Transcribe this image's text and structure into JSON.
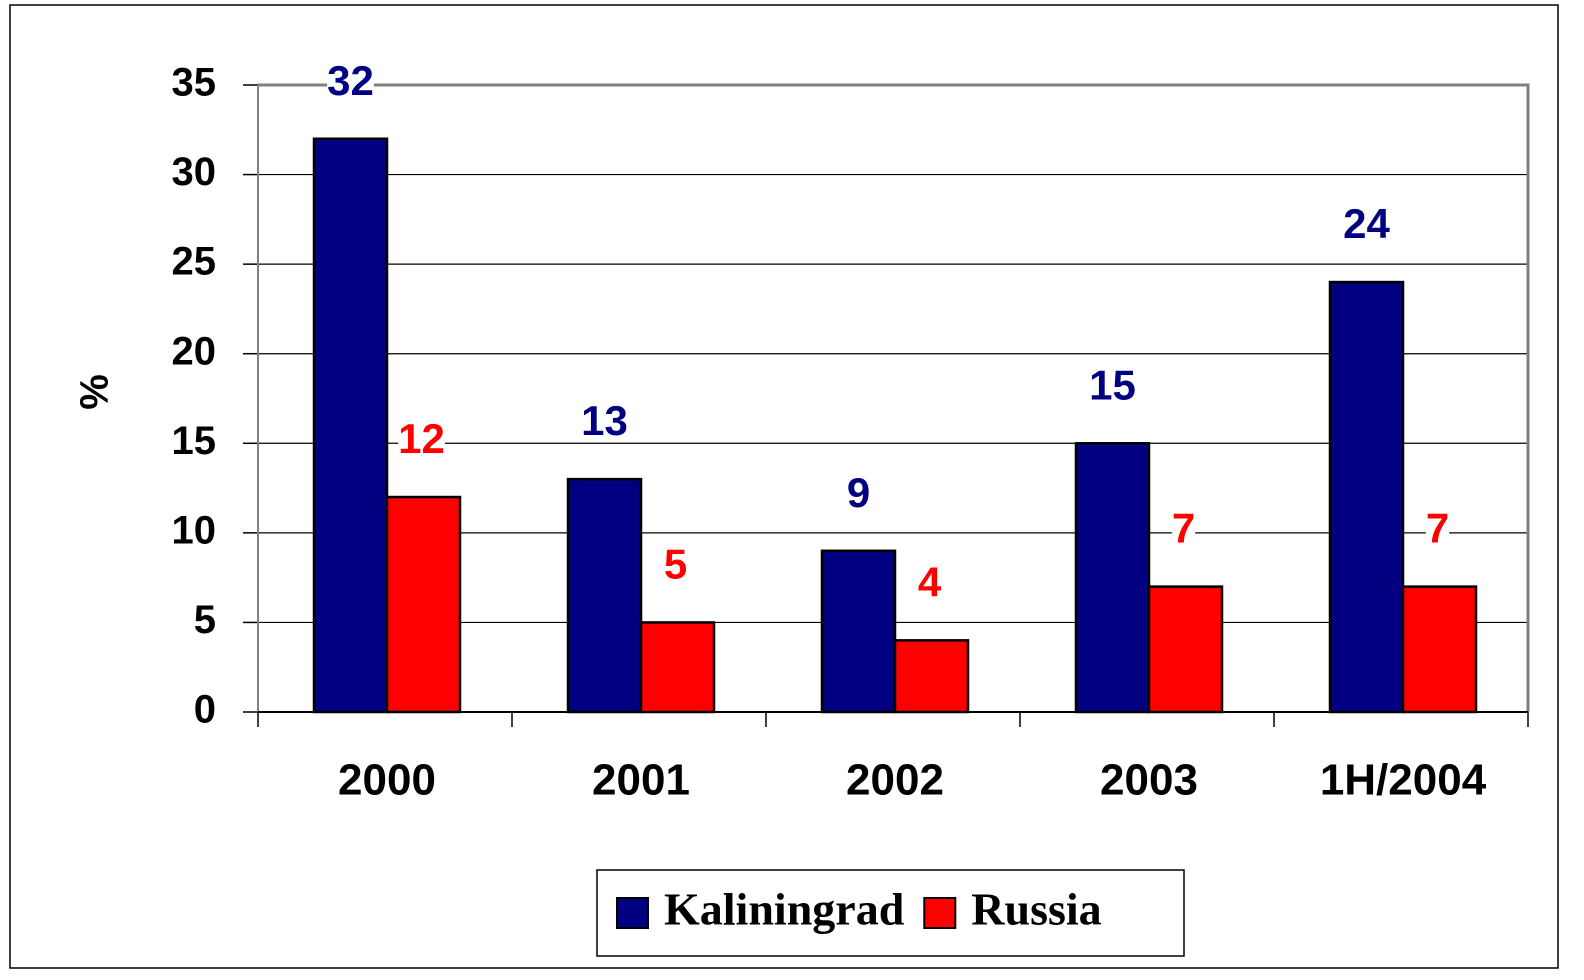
{
  "chart_data": {
    "type": "bar",
    "y_label": "%",
    "categories": [
      "2000",
      "2001",
      "2002",
      "2003",
      "1H/2004"
    ],
    "series": [
      {
        "name": "Kaliningrad",
        "color": "#000080",
        "values": [
          32,
          13,
          9,
          15,
          24
        ]
      },
      {
        "name": "Russia",
        "color": "#ff0000",
        "values": [
          12,
          5,
          4,
          7,
          7
        ]
      }
    ],
    "ylim": [
      0,
      35
    ],
    "yticks": [
      0,
      5,
      10,
      15,
      20,
      25,
      30,
      35
    ],
    "grid": true,
    "legend": "bottom"
  }
}
